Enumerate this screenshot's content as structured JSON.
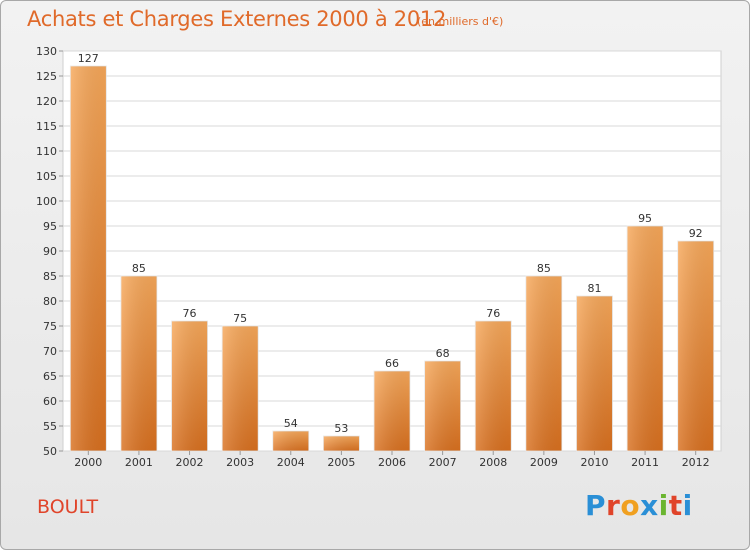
{
  "header": {
    "title": "Achats et Charges Externes 2000 à 2012",
    "subtitle": "(en milliers d'€)"
  },
  "footer": {
    "commune": "BOULT",
    "logo": "Proxiti"
  },
  "colors": {
    "bar_top": "#f7a85a",
    "bar_bottom": "#d9701f",
    "title": "#e06a2a",
    "commune": "#e0442a"
  },
  "chart_data": {
    "type": "bar",
    "title": "Achats et Charges Externes 2000 à 2012",
    "subtitle": "(en milliers d'€)",
    "xlabel": "",
    "ylabel": "",
    "categories": [
      "2000",
      "2001",
      "2002",
      "2003",
      "2004",
      "2005",
      "2006",
      "2007",
      "2008",
      "2009",
      "2010",
      "2011",
      "2012"
    ],
    "values": [
      127,
      85,
      76,
      75,
      54,
      53,
      66,
      68,
      76,
      85,
      81,
      95,
      92
    ],
    "ylim": [
      50,
      130
    ],
    "yticks": [
      50,
      55,
      60,
      65,
      70,
      75,
      80,
      85,
      90,
      95,
      100,
      105,
      110,
      115,
      120,
      125,
      130
    ],
    "grid": true,
    "legend": "none"
  }
}
